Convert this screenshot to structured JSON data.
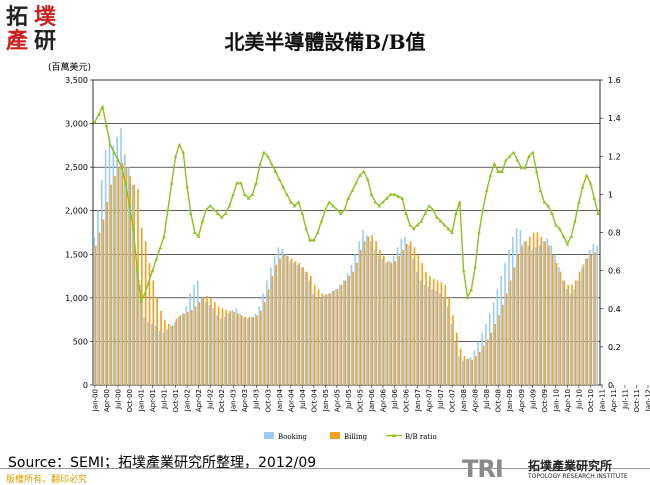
{
  "logo": {
    "chars": [
      "拓",
      "墣",
      "產",
      "研"
    ]
  },
  "title": "北美半導體設備B/B值",
  "unit_label": "(百萬美元)",
  "source": "Source：SEMI；拓墣產業研究所整理，2012/09",
  "copyright": "版權所有，翻印必究",
  "brand": {
    "big": "TRI",
    "cn": "拓墣產業研究所",
    "en": "TOPOLOGY RESEARCH INSTITUTE"
  },
  "colors": {
    "booking": "#9ecbf0",
    "billing": "#f5a01e",
    "ratio": "#8cc21e",
    "logo_red": "#cc1f1f"
  },
  "chart_data": {
    "type": "bar",
    "title": "北美半導體設備B/B值",
    "ylabel": "(百萬美元)",
    "ylim": [
      0,
      3500
    ],
    "yticks": [
      "0",
      "500",
      "1,000",
      "1,500",
      "2,000",
      "2,500",
      "3,000",
      "3,500"
    ],
    "y2lim": [
      0,
      1.6
    ],
    "y2ticks": [
      "0",
      "0.2",
      "0.4",
      "0.6",
      "0.8",
      "1",
      "1.2",
      "1.4",
      "1.6"
    ],
    "grid": true,
    "legend_position": "bottom",
    "x_tick_labels": [
      "Jan-00",
      "Apr-00",
      "Jul-00",
      "Oct-00",
      "Jan-01",
      "Apr-01",
      "Jul-01",
      "Oct-01",
      "Jan-02",
      "Apr-02",
      "Jul-02",
      "Oct-02",
      "Jan-03",
      "Apr-03",
      "Jul-03",
      "Oct-03",
      "Jan-04",
      "Apr-04",
      "Jul-04",
      "Oct-04",
      "Jan-05",
      "Apr-05",
      "Jul-05",
      "Oct-05",
      "Jan-06",
      "Apr-06",
      "Jul-06",
      "Oct-06",
      "Jan-07",
      "Apr-07",
      "Jul-07",
      "Oct-07",
      "Jan-08",
      "Apr-08",
      "Jul-08",
      "Oct-08",
      "Jan-09",
      "Apr-09",
      "Jul-09",
      "Oct-09",
      "Jan-10",
      "Apr-10",
      "Jul-10",
      "Oct-10",
      "Jan-11",
      "Apr-11",
      "Jul-11",
      "Oct-11",
      "Jan-12",
      "Apr-12",
      "Jul-12"
    ],
    "series": [
      {
        "name": "Booking",
        "kind": "bar",
        "axis": "left",
        "values": [
          1700,
          2000,
          2350,
          2700,
          2850,
          2750,
          2850,
          2950,
          2650,
          2500,
          2300,
          1400,
          1150,
          780,
          720,
          700,
          680,
          620,
          600,
          640,
          680,
          720,
          780,
          820,
          900,
          1050,
          1150,
          1200,
          1000,
          950,
          920,
          880,
          800,
          760,
          780,
          820,
          860,
          880,
          820,
          780,
          760,
          780,
          820,
          900,
          1050,
          1200,
          1350,
          1480,
          1580,
          1560,
          1500,
          1420,
          1400,
          1380,
          1350,
          1300,
          1200,
          1050,
          1000,
          1000,
          1030,
          1050,
          1080,
          1100,
          1150,
          1200,
          1280,
          1380,
          1500,
          1650,
          1780,
          1720,
          1650,
          1550,
          1480,
          1450,
          1400,
          1420,
          1480,
          1580,
          1680,
          1700,
          1600,
          1450,
          1300,
          1200,
          1150,
          1130,
          1100,
          1080,
          1050,
          1000,
          900,
          700,
          500,
          330,
          280,
          300,
          320,
          400,
          500,
          600,
          700,
          820,
          950,
          1100,
          1250,
          1400,
          1550,
          1700,
          1800,
          1780,
          1650,
          1600,
          1550,
          1580,
          1600,
          1650,
          1680,
          1600,
          1500,
          1350,
          1200,
          1100,
          1050,
          1100,
          1200,
          1350,
          1450,
          1550,
          1620,
          1600
        ]
      },
      {
        "name": "Billing",
        "kind": "bar",
        "axis": "left",
        "values": [
          1600,
          1750,
          1900,
          2100,
          2300,
          2400,
          2500,
          2550,
          2500,
          2400,
          2300,
          2250,
          1800,
          1650,
          1400,
          1200,
          1000,
          850,
          750,
          700,
          680,
          760,
          800,
          820,
          840,
          860,
          900,
          950,
          1000,
          1020,
          1000,
          950,
          900,
          880,
          860,
          850,
          840,
          820,
          800,
          780,
          780,
          780,
          800,
          850,
          950,
          1100,
          1250,
          1380,
          1450,
          1500,
          1480,
          1450,
          1420,
          1400,
          1350,
          1300,
          1250,
          1150,
          1100,
          1050,
          1040,
          1050,
          1080,
          1100,
          1150,
          1200,
          1250,
          1300,
          1400,
          1550,
          1650,
          1700,
          1720,
          1650,
          1550,
          1480,
          1420,
          1400,
          1420,
          1480,
          1550,
          1620,
          1650,
          1580,
          1500,
          1400,
          1300,
          1250,
          1220,
          1200,
          1180,
          1150,
          1000,
          800,
          600,
          420,
          330,
          300,
          290,
          330,
          380,
          450,
          520,
          600,
          700,
          800,
          920,
          1050,
          1200,
          1350,
          1500,
          1600,
          1650,
          1700,
          1750,
          1750,
          1700,
          1650,
          1600,
          1500,
          1400,
          1300,
          1200,
          1150,
          1150,
          1200,
          1300,
          1380,
          1450,
          1500,
          1520
        ]
      },
      {
        "name": "B/B ratio",
        "kind": "line",
        "axis": "right",
        "values": [
          1.38,
          1.42,
          1.46,
          1.36,
          1.26,
          1.22,
          1.18,
          1.14,
          1.06,
          0.94,
          0.82,
          0.6,
          0.44,
          0.48,
          0.54,
          0.6,
          0.66,
          0.72,
          0.78,
          0.92,
          1.06,
          1.2,
          1.26,
          1.22,
          1.04,
          0.9,
          0.8,
          0.78,
          0.86,
          0.92,
          0.94,
          0.92,
          0.9,
          0.88,
          0.9,
          0.94,
          1.0,
          1.06,
          1.06,
          1.0,
          0.98,
          1.0,
          1.06,
          1.16,
          1.22,
          1.2,
          1.16,
          1.12,
          1.08,
          1.04,
          1.0,
          0.96,
          0.94,
          0.96,
          0.9,
          0.82,
          0.76,
          0.76,
          0.8,
          0.86,
          0.92,
          0.96,
          0.94,
          0.92,
          0.9,
          0.92,
          0.98,
          1.02,
          1.06,
          1.1,
          1.12,
          1.08,
          1.0,
          0.96,
          0.94,
          0.96,
          0.98,
          1.0,
          1.0,
          0.99,
          0.98,
          0.9,
          0.84,
          0.82,
          0.84,
          0.86,
          0.9,
          0.94,
          0.92,
          0.88,
          0.86,
          0.84,
          0.82,
          0.8,
          0.9,
          0.96,
          0.6,
          0.46,
          0.5,
          0.62,
          0.8,
          0.92,
          1.02,
          1.1,
          1.16,
          1.12,
          1.12,
          1.18,
          1.2,
          1.22,
          1.18,
          1.14,
          1.14,
          1.2,
          1.22,
          1.12,
          1.02,
          0.96,
          0.94,
          0.9,
          0.84,
          0.82,
          0.78,
          0.74,
          0.78,
          0.86,
          0.96,
          1.04,
          1.1,
          1.06,
          0.98,
          0.9
        ]
      }
    ]
  }
}
